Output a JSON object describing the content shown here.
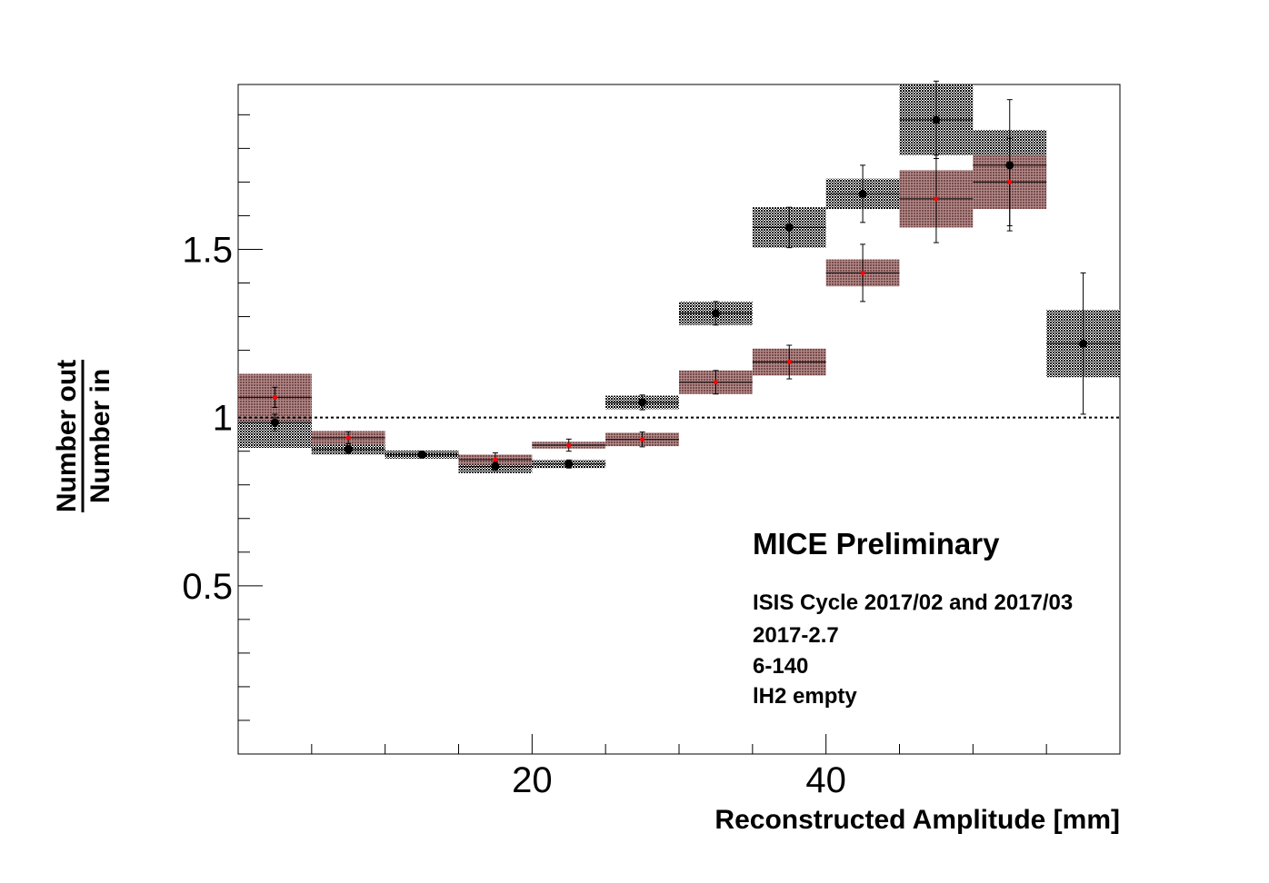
{
  "chart_data": {
    "type": "scatter",
    "xlabel": "Reconstructed Amplitude [mm]",
    "ylabel_numerator": "Number out",
    "ylabel_denominator": "Number in",
    "xlim": [
      0,
      60
    ],
    "ylim": [
      0.0,
      1.99
    ],
    "x_ticks": [
      20,
      40
    ],
    "x_tick_labels": [
      "20",
      "40"
    ],
    "x_minor_step": 5,
    "y_ticks": [
      0.5,
      1.0,
      1.5
    ],
    "y_tick_labels": [
      "0.5",
      "1",
      "1.5"
    ],
    "y_minor_step": 0.1,
    "reference_line": 1.0,
    "grid": false,
    "annotations": {
      "title": "MICE Preliminary",
      "lines": [
        "ISIS Cycle 2017/02 and 2017/03",
        "2017-2.7",
        "6-140",
        "lH2 empty"
      ]
    },
    "colors": {
      "black_series_point": "#000000",
      "black_series_band": "#1a1a1a",
      "red_series_point": "#ff0000",
      "red_series_band": "#8c5a5a"
    },
    "series": [
      {
        "key": "black",
        "bin_width": 5,
        "points": [
          {
            "x": 2.5,
            "y": 0.985,
            "err": 0.025,
            "sys": 0.075
          },
          {
            "x": 7.5,
            "y": 0.905,
            "err": 0.012,
            "sys": 0.015
          },
          {
            "x": 12.5,
            "y": 0.89,
            "err": 0.01,
            "sys": 0.012
          },
          {
            "x": 17.5,
            "y": 0.855,
            "err": 0.012,
            "sys": 0.02
          },
          {
            "x": 22.5,
            "y": 0.862,
            "err": 0.012,
            "sys": 0.012
          },
          {
            "x": 27.5,
            "y": 1.045,
            "err": 0.022,
            "sys": 0.02
          },
          {
            "x": 32.5,
            "y": 1.31,
            "err": 0.035,
            "sys": 0.035
          },
          {
            "x": 37.5,
            "y": 1.565,
            "err": 0.06,
            "sys": 0.06
          },
          {
            "x": 42.5,
            "y": 1.665,
            "err": 0.085,
            "sys": 0.045
          },
          {
            "x": 47.5,
            "y": 1.885,
            "err": 0.115,
            "sys": 0.105
          },
          {
            "x": 52.5,
            "y": 1.75,
            "err": 0.195,
            "sys": 0.105
          },
          {
            "x": 57.5,
            "y": 1.22,
            "err": 0.21,
            "sys": 0.1
          }
        ]
      },
      {
        "key": "red",
        "bin_width": 5,
        "points": [
          {
            "x": 2.5,
            "y": 1.06,
            "err": 0.03,
            "sys": 0.07
          },
          {
            "x": 7.5,
            "y": 0.94,
            "err": 0.018,
            "sys": 0.02
          },
          {
            "x": 17.5,
            "y": 0.875,
            "err": 0.02,
            "sys": 0.015
          },
          {
            "x": 22.5,
            "y": 0.918,
            "err": 0.018,
            "sys": 0.01
          },
          {
            "x": 27.5,
            "y": 0.935,
            "err": 0.022,
            "sys": 0.02
          },
          {
            "x": 32.5,
            "y": 1.105,
            "err": 0.035,
            "sys": 0.035
          },
          {
            "x": 37.5,
            "y": 1.165,
            "err": 0.05,
            "sys": 0.04
          },
          {
            "x": 42.5,
            "y": 1.43,
            "err": 0.085,
            "sys": 0.04
          },
          {
            "x": 47.5,
            "y": 1.65,
            "err": 0.13,
            "sys": 0.085
          },
          {
            "x": 52.5,
            "y": 1.7,
            "err": 0.13,
            "sys": 0.08
          }
        ]
      }
    ]
  }
}
